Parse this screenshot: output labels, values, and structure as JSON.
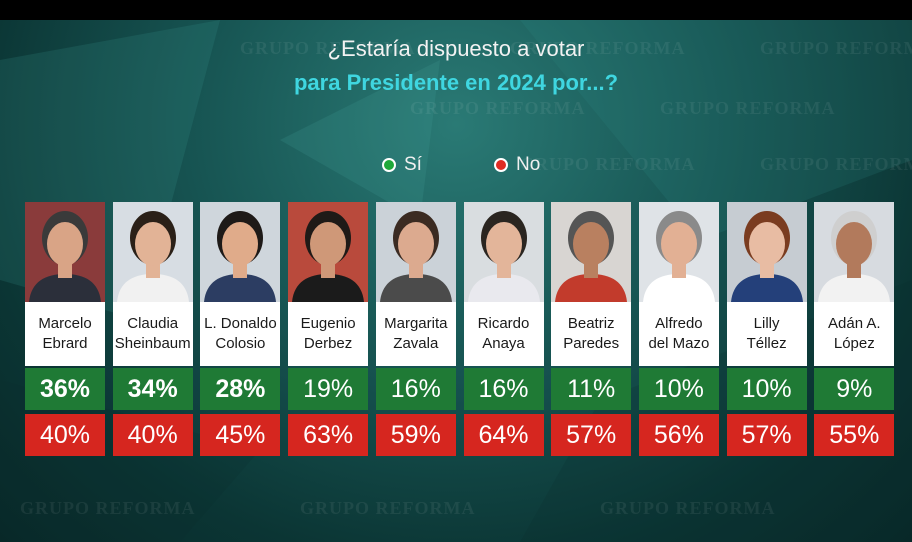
{
  "chart_data": {
    "type": "bar",
    "title": "¿Estaría dispuesto a votar",
    "subtitle": "para Presidente en 2024 por...?",
    "legend": [
      {
        "label": "Sí",
        "color": "#1f7a35"
      },
      {
        "label": "No",
        "color": "#d6261f"
      }
    ],
    "categories": [
      [
        "Marcelo",
        "Ebrard"
      ],
      [
        "Claudia",
        "Sheinbaum"
      ],
      [
        "L. Donaldo",
        "Colosio"
      ],
      [
        "Eugenio",
        "Derbez"
      ],
      [
        "Margarita",
        "Zavala"
      ],
      [
        "Ricardo",
        "Anaya"
      ],
      [
        "Beatriz",
        "Paredes"
      ],
      [
        "Alfredo",
        "del Mazo"
      ],
      [
        "Lilly",
        "Téllez"
      ],
      [
        "Adán A.",
        "López"
      ]
    ],
    "series": [
      {
        "name": "Sí",
        "values": [
          36,
          34,
          28,
          19,
          16,
          16,
          11,
          10,
          10,
          9
        ]
      },
      {
        "name": "No",
        "values": [
          40,
          40,
          45,
          63,
          59,
          64,
          57,
          56,
          57,
          55
        ]
      }
    ],
    "unit": "%"
  },
  "watermark": "GRUPO REFORMA",
  "photo_style": [
    {
      "bg": "#8a3b3b",
      "skin": "#d9a486",
      "hair": "#3a3a3a",
      "shirt": "#2b2f3a"
    },
    {
      "bg": "#d7dde3",
      "skin": "#e2b396",
      "hair": "#2a2018",
      "shirt": "#f1f1f1"
    },
    {
      "bg": "#cfd6dc",
      "skin": "#e0ab8a",
      "hair": "#1e1a18",
      "shirt": "#2c3d62"
    },
    {
      "bg": "#b94a3c",
      "skin": "#cf9878",
      "hair": "#1f1a17",
      "shirt": "#1b1b1b"
    },
    {
      "bg": "#cbd2d8",
      "skin": "#dcaa8f",
      "hair": "#3b2b22",
      "shirt": "#4b4b4b"
    },
    {
      "bg": "#d9dde0",
      "skin": "#e3b59a",
      "hair": "#2a2520",
      "shirt": "#e9e9ee"
    },
    {
      "bg": "#d8d5d2",
      "skin": "#b98060",
      "hair": "#555",
      "shirt": "#c23b2c"
    },
    {
      "bg": "#dfe3e7",
      "skin": "#e2b094",
      "hair": "#8a8a8a",
      "shirt": "#ffffff"
    },
    {
      "bg": "#c6ccd2",
      "skin": "#e8bca3",
      "hair": "#7a3c20",
      "shirt": "#24407a"
    },
    {
      "bg": "#d7dbe0",
      "skin": "#b27a5c",
      "hair": "#cfcfcf",
      "shirt": "#f2f2f2"
    }
  ]
}
